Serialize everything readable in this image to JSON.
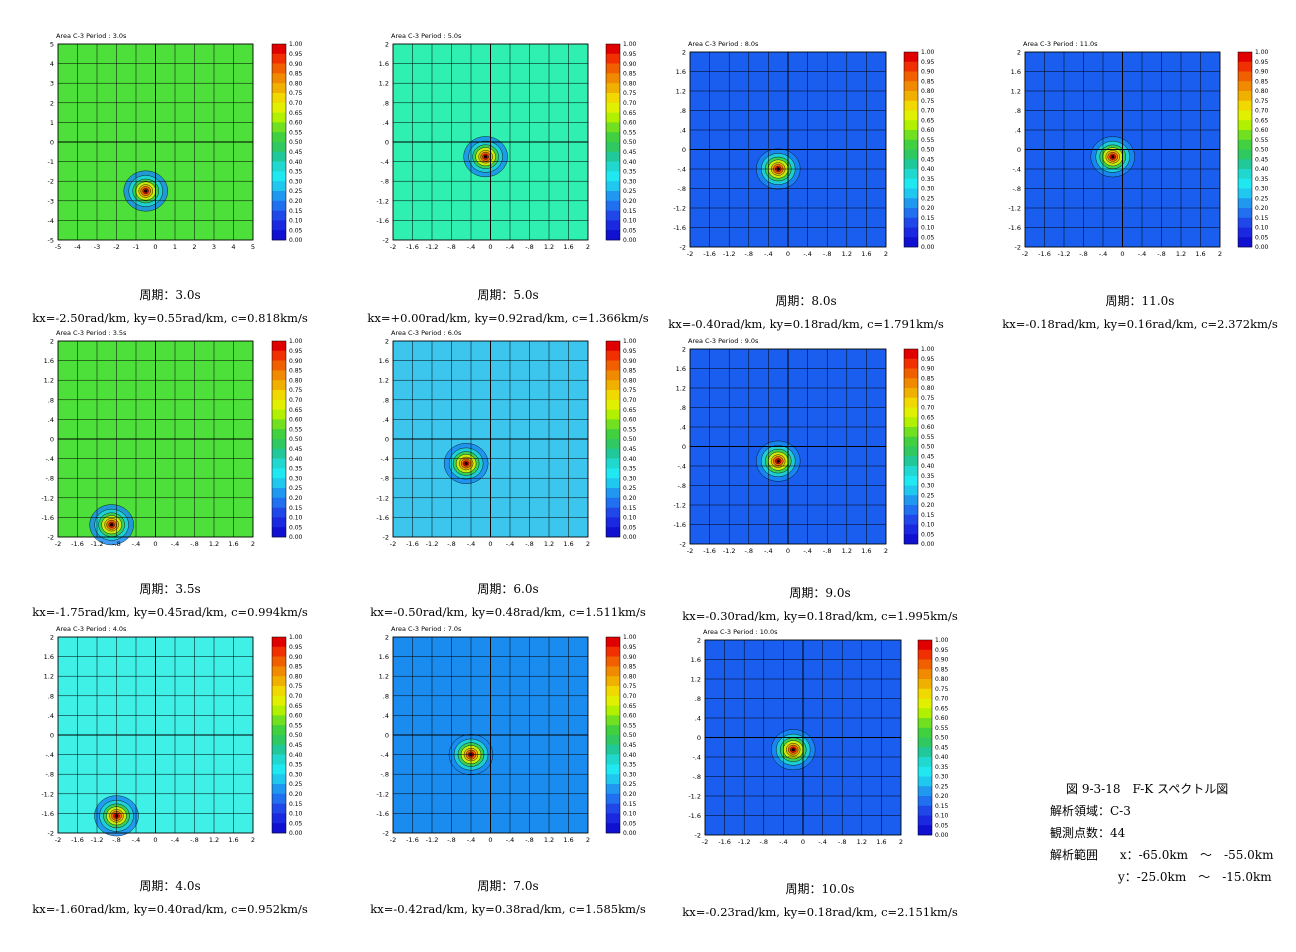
{
  "panels": [
    {
      "id": "p30",
      "header": "Area C-3   Period : 3.0s",
      "period_caption": "周期：3.0s",
      "wave_caption": "kx=-2.50rad/km, ky=0.55rad/km, c=0.818km/s",
      "ticks": [
        "-5",
        "-4",
        "-3",
        "-2",
        "-1",
        "0",
        "1",
        "2",
        "3",
        "4",
        "5"
      ],
      "ytick_labels": [
        "-5",
        "-4",
        "-3",
        "-2",
        "-1",
        "0",
        "1",
        "2",
        "3",
        "4",
        "5"
      ],
      "background": "#4ee03a",
      "peak": {
        "x": -0.5,
        "y": -2.5
      }
    },
    {
      "id": "p50",
      "header": "Area C-3   Period : 5.0s",
      "period_caption": "周期：5.0s",
      "wave_caption": "kx=+0.00rad/km, ky=0.92rad/km, c=1.366km/s",
      "ticks": [
        "-2",
        "-1.6",
        "-1.2",
        "-.8",
        "-.4",
        "0",
        "-.4",
        "-.8",
        "1.2",
        "1.6",
        "2"
      ],
      "ytick_labels": [
        "-2",
        "-1.6",
        "-1.2",
        "-.8",
        "-.4",
        "0",
        ".4",
        ".8",
        "1.2",
        "1.6",
        "2"
      ],
      "background": "#2ff0b0",
      "peak": {
        "x": -0.1,
        "y": -0.3
      }
    },
    {
      "id": "p80",
      "header": "Area C-3   Period : 8.0s",
      "period_caption": "周期：8.0s",
      "wave_caption": "kx=-0.40rad/km, ky=0.18rad/km, c=1.791km/s",
      "ticks": [
        "-2",
        "-1.6",
        "-1.2",
        "-.8",
        "-.4",
        "0",
        "-.4",
        "-.8",
        "1.2",
        "1.6",
        "2"
      ],
      "ytick_labels": [
        "-2",
        "-1.6",
        "-1.2",
        "-.8",
        "-.4",
        "0",
        ".4",
        ".8",
        "1.2",
        "1.6",
        "2"
      ],
      "background": "#1a5ef0",
      "peak": {
        "x": -0.2,
        "y": -0.4
      }
    },
    {
      "id": "p110",
      "header": "Area C-3   Period : 11.0s",
      "period_caption": "周期：11.0s",
      "wave_caption": "kx=-0.18rad/km, ky=0.16rad/km, c=2.372km/s",
      "ticks": [
        "-2",
        "-1.6",
        "-1.2",
        "-.8",
        "-.4",
        "0",
        "-.4",
        "-.8",
        "1.2",
        "1.6",
        "2"
      ],
      "ytick_labels": [
        "-2",
        "-1.6",
        "-1.2",
        "-.8",
        "-.4",
        "0",
        ".4",
        ".8",
        "1.2",
        "1.6",
        "2"
      ],
      "background": "#1a5ef0",
      "peak": {
        "x": -0.2,
        "y": -0.15
      }
    },
    {
      "id": "p35",
      "header": "Area C-3   Period : 3.5s",
      "period_caption": "周期：3.5s",
      "wave_caption": "kx=-1.75rad/km, ky=0.45rad/km, c=0.994km/s",
      "ticks": [
        "-2",
        "-1.6",
        "-1.2",
        "-.8",
        "-.4",
        "0",
        "-.4",
        "-.8",
        "1.2",
        "1.6",
        "2"
      ],
      "ytick_labels": [
        "-2",
        "-1.6",
        "-1.2",
        "-.8",
        "-.4",
        "0",
        ".4",
        ".8",
        "1.2",
        "1.6",
        "2"
      ],
      "background": "#4ee03a",
      "peak": {
        "x": -0.9,
        "y": -1.75
      }
    },
    {
      "id": "p60",
      "header": "Area C-3   Period : 6.0s",
      "period_caption": "周期：6.0s",
      "wave_caption": "kx=-0.50rad/km, ky=0.48rad/km, c=1.511km/s",
      "ticks": [
        "-2",
        "-1.6",
        "-1.2",
        "-.8",
        "-.4",
        "0",
        "-.4",
        "-.8",
        "1.2",
        "1.6",
        "2"
      ],
      "ytick_labels": [
        "-2",
        "-1.6",
        "-1.2",
        "-.8",
        "-.4",
        "0",
        ".4",
        ".8",
        "1.2",
        "1.6",
        "2"
      ],
      "background": "#3cc6ee",
      "peak": {
        "x": -0.5,
        "y": -0.5
      }
    },
    {
      "id": "p90",
      "header": "Area C-3   Period : 9.0s",
      "period_caption": "周期：9.0s",
      "wave_caption": "kx=-0.30rad/km, ky=0.18rad/km, c=1.995km/s",
      "ticks": [
        "-2",
        "-1.6",
        "-1.2",
        "-.8",
        "-.4",
        "0",
        "-.4",
        "-.8",
        "1.2",
        "1.6",
        "2"
      ],
      "ytick_labels": [
        "-2",
        "-1.6",
        "-1.2",
        "-.8",
        "-.4",
        "0",
        ".4",
        ".8",
        "1.2",
        "1.6",
        "2"
      ],
      "background": "#1a5ef0",
      "peak": {
        "x": -0.2,
        "y": -0.3
      }
    },
    {
      "id": "p40",
      "header": "Area C-3   Period : 4.0s",
      "period_caption": "周期：4.0s",
      "wave_caption": "kx=-1.60rad/km, ky=0.40rad/km, c=0.952km/s",
      "ticks": [
        "-2",
        "-1.6",
        "-1.2",
        "-.8",
        "-.4",
        "0",
        "-.4",
        "-.8",
        "1.2",
        "1.6",
        "2"
      ],
      "ytick_labels": [
        "-2",
        "-1.6",
        "-1.2",
        "-.8",
        "-.4",
        "0",
        ".4",
        ".8",
        "1.2",
        "1.6",
        "2"
      ],
      "background": "#3ef0e6",
      "peak": {
        "x": -0.8,
        "y": -1.65
      }
    },
    {
      "id": "p70",
      "header": "Area C-3   Period : 7.0s",
      "period_caption": "周期：7.0s",
      "wave_caption": "kx=-0.42rad/km, ky=0.38rad/km, c=1.585km/s",
      "ticks": [
        "-2",
        "-1.6",
        "-1.2",
        "-.8",
        "-.4",
        "0",
        "-.4",
        "-.8",
        "1.2",
        "1.6",
        "2"
      ],
      "ytick_labels": [
        "-2",
        "-1.6",
        "-1.2",
        "-.8",
        "-.4",
        "0",
        ".4",
        ".8",
        "1.2",
        "1.6",
        "2"
      ],
      "background": "#1a8cf0",
      "peak": {
        "x": -0.4,
        "y": -0.4
      }
    },
    {
      "id": "p100",
      "header": "Area C-3   Period : 10.0s",
      "period_caption": "周期：10.0s",
      "wave_caption": "kx=-0.23rad/km, ky=0.18rad/km, c=2.151km/s",
      "ticks": [
        "-2",
        "-1.6",
        "-1.2",
        "-.8",
        "-.4",
        "0",
        "-.4",
        "-.8",
        "1.2",
        "1.6",
        "2"
      ],
      "ytick_labels": [
        "-2",
        "-1.6",
        "-1.2",
        "-.8",
        "-.4",
        "0",
        ".4",
        ".8",
        "1.2",
        "1.6",
        "2"
      ],
      "background": "#1a5ef0",
      "peak": {
        "x": -0.2,
        "y": -0.25
      }
    }
  ],
  "colorbar": {
    "labels": [
      "1.00",
      "0.95",
      "0.90",
      "0.85",
      "0.80",
      "0.75",
      "0.70",
      "0.65",
      "0.60",
      "0.55",
      "0.50",
      "0.45",
      "0.40",
      "0.35",
      "0.30",
      "0.25",
      "0.20",
      "0.15",
      "0.10",
      "0.05",
      "0.00"
    ],
    "colors": [
      "#e00000",
      "#f03000",
      "#f06000",
      "#f08a00",
      "#f0b000",
      "#f0d800",
      "#e0f000",
      "#b0f000",
      "#70e020",
      "#40d040",
      "#30c860",
      "#20c89a",
      "#20d8d0",
      "#20e8f0",
      "#20c8f0",
      "#2098f0",
      "#2070f0",
      "#2048e8",
      "#1a28e0",
      "#1010d0"
    ]
  },
  "info": {
    "title": "図 9-3-18　F-K スペクトル図",
    "area": "解析領域：C-3",
    "points": "観測点数：44",
    "range_label": "解析範囲",
    "range_x": "x：-65.0km　～　-55.0km",
    "range_y": "y：-25.0km　～　-15.0km"
  },
  "chart_data": [
    {
      "type": "heatmap",
      "title": "Area C-3   Period : 3.0s",
      "x_ticks": [
        -5,
        -4,
        -3,
        -2,
        -1,
        0,
        1,
        2,
        3,
        4,
        5
      ],
      "y_ticks": [
        -5,
        -4,
        -3,
        -2,
        -1,
        0,
        1,
        2,
        3,
        4,
        5
      ],
      "xlim": [
        -5,
        5
      ],
      "ylim": [
        -5,
        5
      ],
      "grid": true,
      "colorbar_range": [
        0,
        1
      ],
      "peak": {
        "x": -0.5,
        "y": -2.5
      }
    },
    {
      "type": "heatmap",
      "title": "Area C-3   Period : 5.0s",
      "xlim": [
        -2,
        2
      ],
      "ylim": [
        -2,
        2
      ],
      "grid": true,
      "colorbar_range": [
        0,
        1
      ],
      "peak": {
        "x": -0.1,
        "y": -0.3
      }
    },
    {
      "type": "heatmap",
      "title": "Area C-3   Period : 8.0s",
      "xlim": [
        -2,
        2
      ],
      "ylim": [
        -2,
        2
      ],
      "grid": true,
      "colorbar_range": [
        0,
        1
      ],
      "peak": {
        "x": -0.2,
        "y": -0.4
      }
    },
    {
      "type": "heatmap",
      "title": "Area C-3   Period : 11.0s",
      "xlim": [
        -2,
        2
      ],
      "ylim": [
        -2,
        2
      ],
      "grid": true,
      "colorbar_range": [
        0,
        1
      ],
      "peak": {
        "x": -0.2,
        "y": -0.15
      }
    },
    {
      "type": "heatmap",
      "title": "Area C-3   Period : 3.5s",
      "xlim": [
        -2,
        2
      ],
      "ylim": [
        -2,
        2
      ],
      "grid": true,
      "colorbar_range": [
        0,
        1
      ],
      "peak": {
        "x": -0.9,
        "y": -1.75
      }
    },
    {
      "type": "heatmap",
      "title": "Area C-3   Period : 6.0s",
      "xlim": [
        -2,
        2
      ],
      "ylim": [
        -2,
        2
      ],
      "grid": true,
      "colorbar_range": [
        0,
        1
      ],
      "peak": {
        "x": -0.5,
        "y": -0.5
      }
    },
    {
      "type": "heatmap",
      "title": "Area C-3   Period : 9.0s",
      "xlim": [
        -2,
        2
      ],
      "ylim": [
        -2,
        2
      ],
      "grid": true,
      "colorbar_range": [
        0,
        1
      ],
      "peak": {
        "x": -0.2,
        "y": -0.3
      }
    },
    {
      "type": "heatmap",
      "title": "Area C-3   Period : 4.0s",
      "xlim": [
        -2,
        2
      ],
      "ylim": [
        -2,
        2
      ],
      "grid": true,
      "colorbar_range": [
        0,
        1
      ],
      "peak": {
        "x": -0.8,
        "y": -1.65
      }
    },
    {
      "type": "heatmap",
      "title": "Area C-3   Period : 7.0s",
      "xlim": [
        -2,
        2
      ],
      "ylim": [
        -2,
        2
      ],
      "grid": true,
      "colorbar_range": [
        0,
        1
      ],
      "peak": {
        "x": -0.4,
        "y": -0.4
      }
    },
    {
      "type": "heatmap",
      "title": "Area C-3   Period : 10.0s",
      "xlim": [
        -2,
        2
      ],
      "ylim": [
        -2,
        2
      ],
      "grid": true,
      "colorbar_range": [
        0,
        1
      ],
      "peak": {
        "x": -0.2,
        "y": -0.25
      }
    }
  ]
}
